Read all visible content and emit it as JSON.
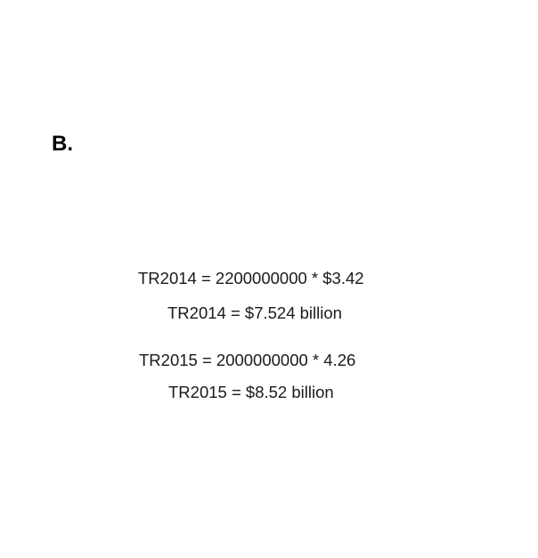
{
  "section": {
    "label": "B."
  },
  "equations": [
    "TR2014 = 2200000000 * $3.42",
    "TR2014 = $7.524 billion",
    "TR2015 = 2000000000 * 4.26",
    "TR2015 = $8.52 billion"
  ]
}
